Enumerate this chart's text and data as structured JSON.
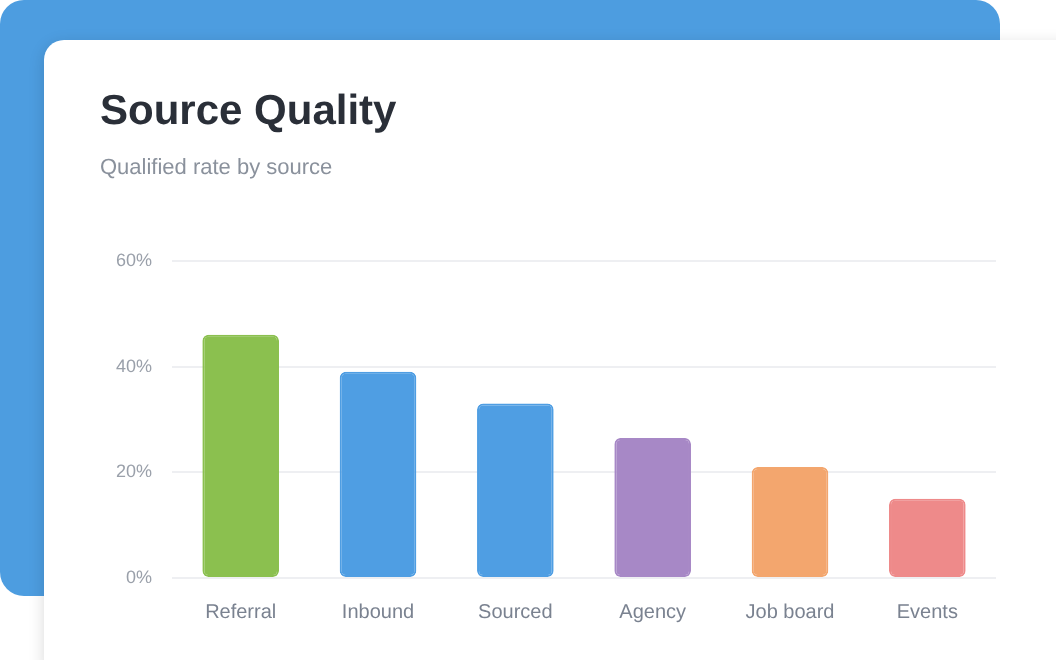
{
  "chart_data": {
    "type": "bar",
    "title": "Source Quality",
    "subtitle": "Qualified rate by source",
    "categories": [
      "Referral",
      "Inbound",
      "Sourced",
      "Agency",
      "Job board",
      "Events"
    ],
    "values": [
      46,
      39,
      33,
      26.5,
      21,
      15
    ],
    "colors": [
      "#8bc04f",
      "#4f9ee3",
      "#4f9ee3",
      "#a788c6",
      "#f3a66e",
      "#ee8a8a"
    ],
    "ylim": [
      0,
      60
    ],
    "yticks": [
      {
        "value": 0,
        "label": "0%"
      },
      {
        "value": 20,
        "label": "20%"
      },
      {
        "value": 40,
        "label": "40%"
      },
      {
        "value": 60,
        "label": "60%"
      }
    ],
    "grid": "y",
    "legend": false
  }
}
